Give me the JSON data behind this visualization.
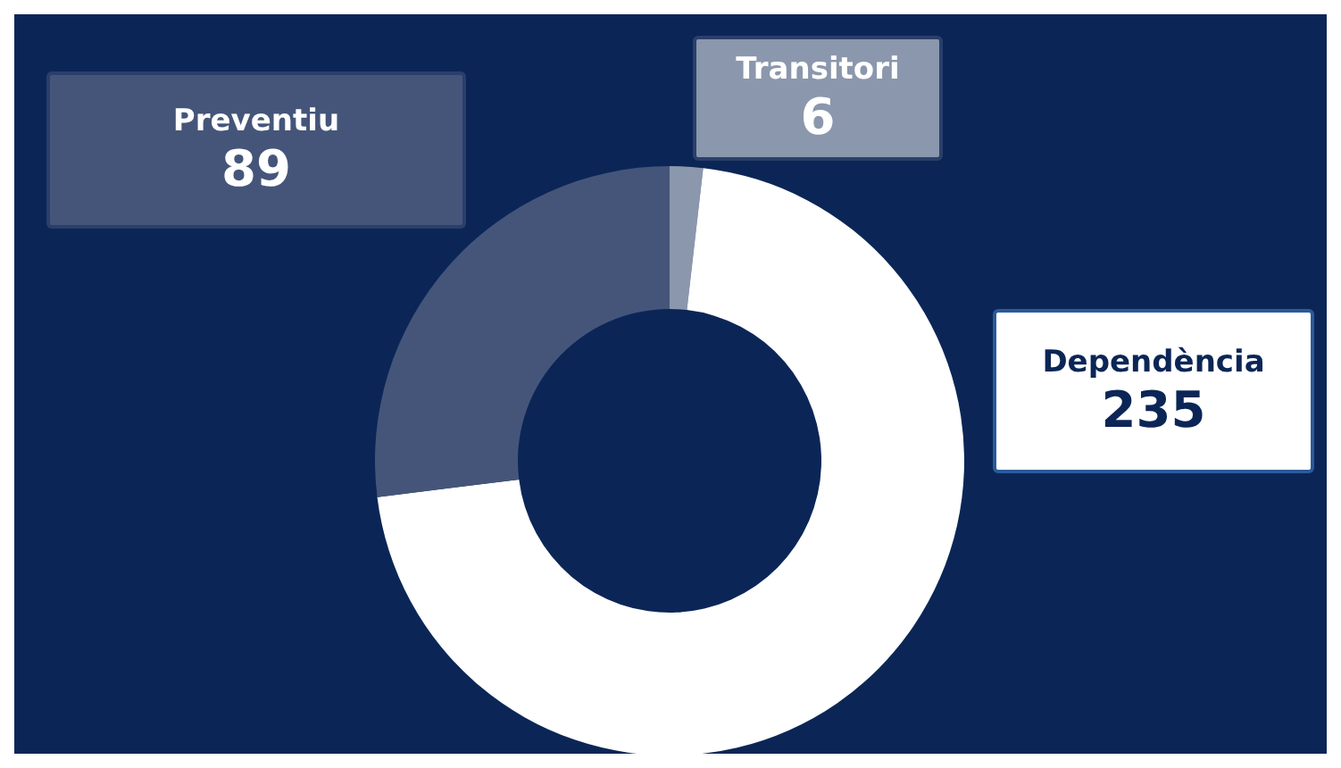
{
  "chart_data": {
    "type": "donut",
    "categories": [
      "Transitori",
      "Dependència",
      "Preventiu"
    ],
    "values": [
      6,
      235,
      89
    ],
    "colors": [
      "#8b97ad",
      "#ffffff",
      "#45557a"
    ],
    "data_labels": true
  }
}
